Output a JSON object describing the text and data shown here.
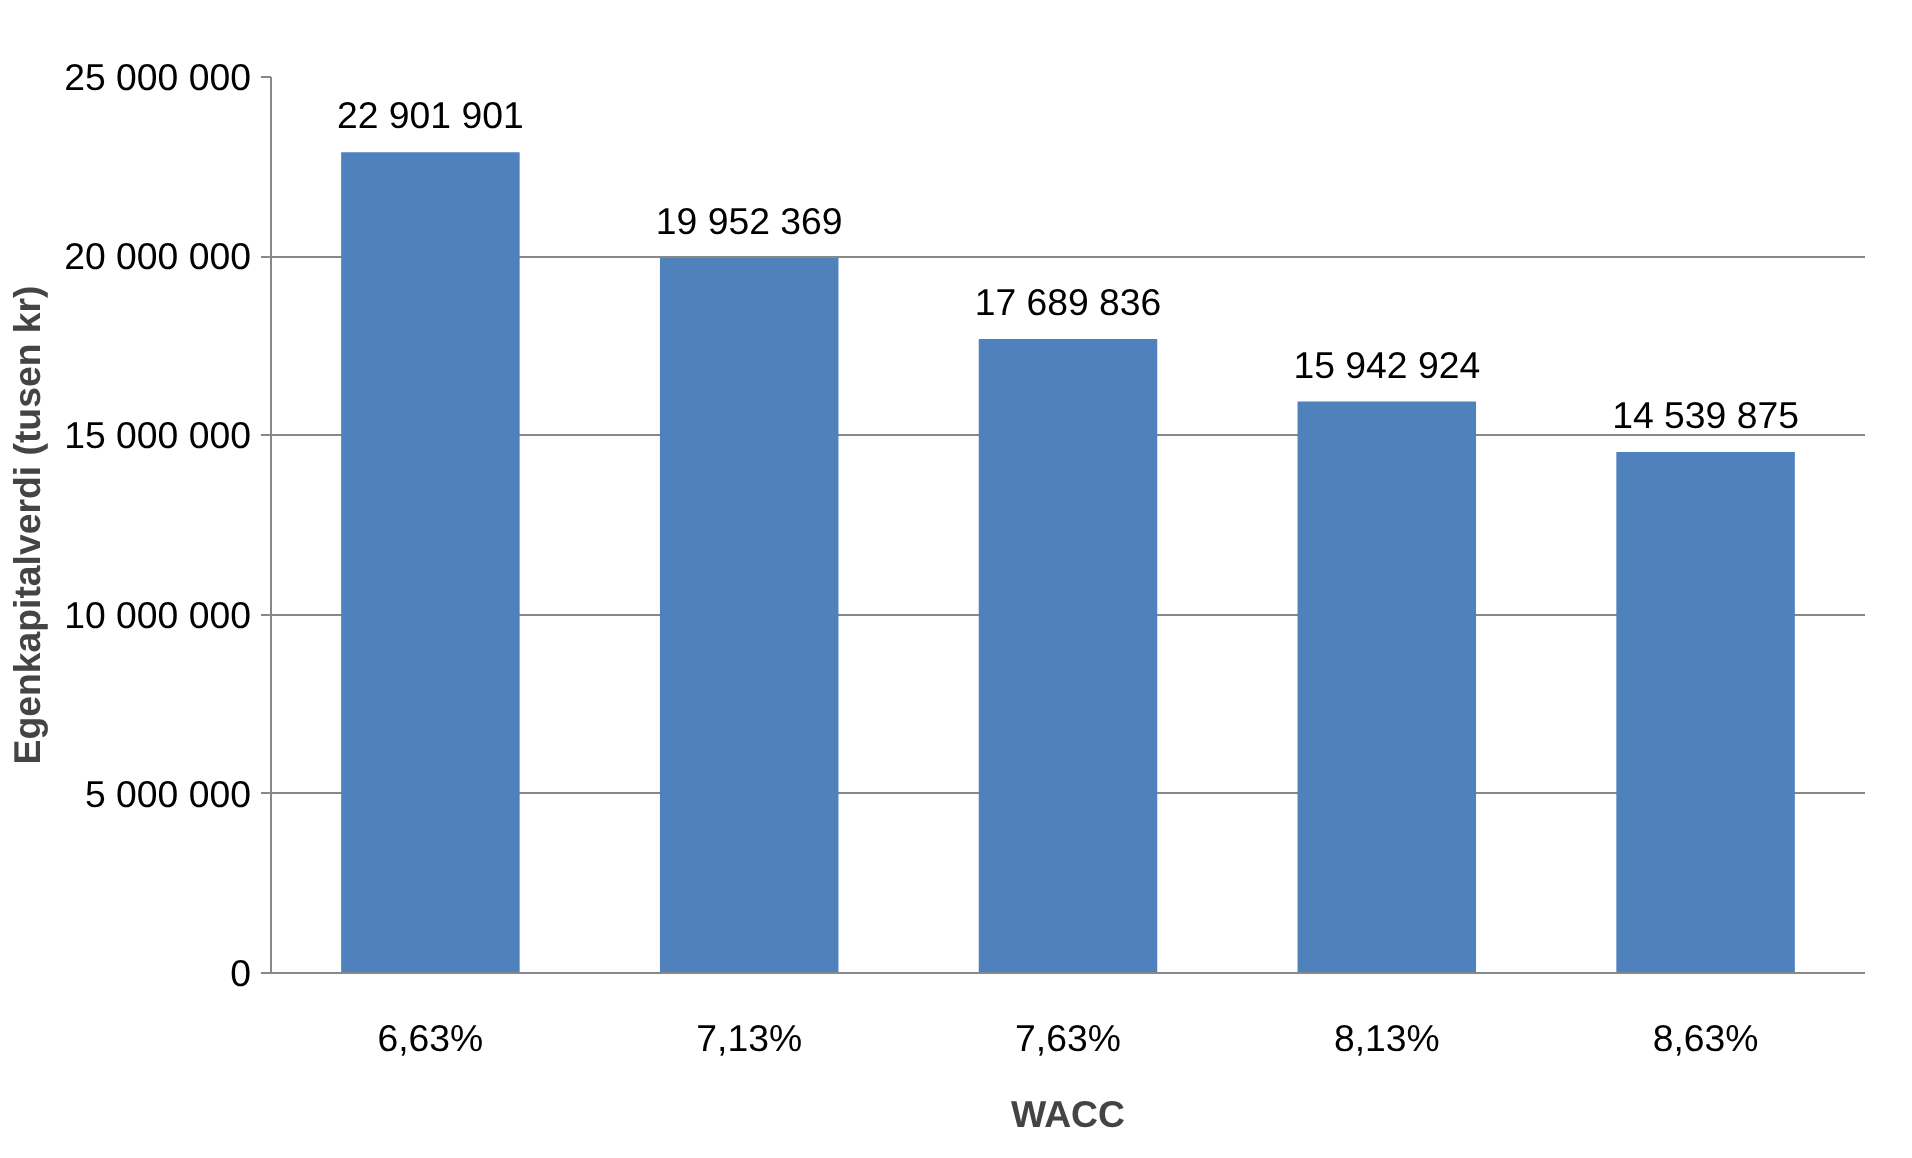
{
  "chart_data": {
    "type": "bar",
    "xlabel": "WACC",
    "ylabel": "Egenkapitalverdi (tusen kr)",
    "categories": [
      "6,63%",
      "7,13%",
      "7,63%",
      "8,13%",
      "8,63%"
    ],
    "values": [
      22901901,
      19952369,
      17689836,
      15942924,
      14539875
    ],
    "value_labels": [
      "22 901 901",
      "19 952 369",
      "17 689 836",
      "15 942 924",
      "14 539 875"
    ],
    "color": "#4f81bd",
    "ylim": [
      0,
      25000000
    ],
    "yticks": [
      {
        "value": 0,
        "label": "0"
      },
      {
        "value": 5000000,
        "label": "5 000 000"
      },
      {
        "value": 10000000,
        "label": "10 000 000"
      },
      {
        "value": 15000000,
        "label": "15 000 000"
      },
      {
        "value": 20000000,
        "label": "20 000 000"
      },
      {
        "value": 25000000,
        "label": "25 000 000"
      }
    ],
    "grid": "y"
  }
}
